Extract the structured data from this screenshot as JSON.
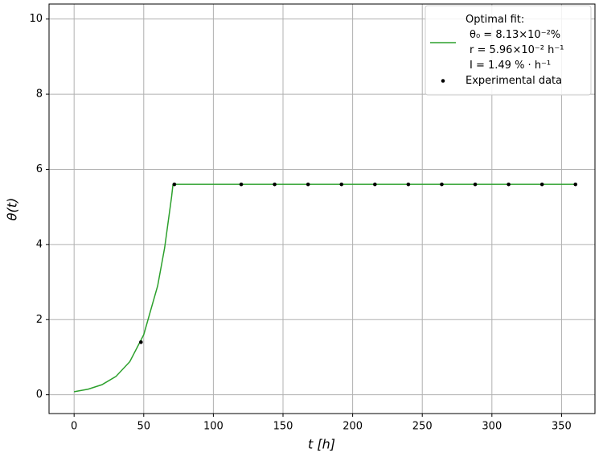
{
  "chart_data": {
    "type": "line",
    "xlabel": "t [h]",
    "ylabel": "θ(t)",
    "xlim": [
      -18,
      374
    ],
    "ylim": [
      -0.5,
      10.4
    ],
    "xticks": [
      0,
      50,
      100,
      150,
      200,
      250,
      300,
      350
    ],
    "yticks": [
      0,
      2,
      4,
      6,
      8,
      10
    ],
    "grid": true,
    "legend": "upper right",
    "series": [
      {
        "name": [
          "Optimal fit:",
          "θ₀ = 8.13×10⁻²%",
          "r = 5.96×10⁻² h⁻¹",
          "I = 1.49 % · h⁻¹"
        ],
        "type": "line",
        "color": "#2ca02c",
        "x": [
          0,
          10,
          20,
          30,
          40,
          50,
          60,
          65,
          70,
          71,
          360
        ],
        "values": [
          0.081,
          0.148,
          0.268,
          0.486,
          0.882,
          1.6,
          2.9,
          3.91,
          5.27,
          5.6,
          5.6
        ]
      },
      {
        "name": [
          "Experimental data"
        ],
        "type": "scatter",
        "color": "#000000",
        "x": [
          48,
          72,
          120,
          144,
          168,
          192,
          216,
          240,
          264,
          288,
          312,
          336,
          360
        ],
        "values": [
          1.4,
          5.6,
          5.6,
          5.6,
          5.6,
          5.6,
          5.6,
          5.6,
          5.6,
          5.6,
          5.6,
          5.6,
          5.6
        ]
      }
    ]
  }
}
